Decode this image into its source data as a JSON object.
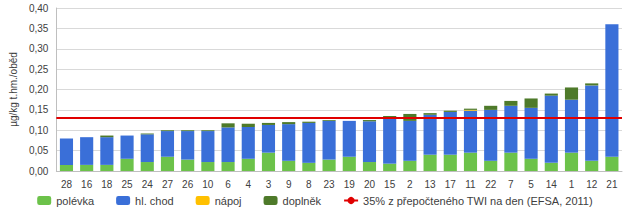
{
  "chart_data": {
    "type": "bar",
    "stacked": true,
    "grid": true,
    "legend": "bottom",
    "y_label": "µg/kg t.hm./oběd",
    "ylim": [
      0,
      0.4
    ],
    "yticks": [
      {
        "value": 0,
        "label": "0,00"
      },
      {
        "value": 0.05,
        "label": "0,05"
      },
      {
        "value": 0.1,
        "label": "0,10"
      },
      {
        "value": 0.15,
        "label": "0,15"
      },
      {
        "value": 0.2,
        "label": "0,20"
      },
      {
        "value": 0.25,
        "label": "0,25"
      },
      {
        "value": 0.3,
        "label": "0,30"
      },
      {
        "value": 0.35,
        "label": "0,35"
      },
      {
        "value": 0.4,
        "label": "0,40"
      }
    ],
    "categories": [
      "28",
      "16",
      "18",
      "25",
      "24",
      "27",
      "26",
      "10",
      "6",
      "4",
      "3",
      "9",
      "8",
      "23",
      "19",
      "20",
      "15",
      "2",
      "13",
      "17",
      "11",
      "22",
      "7",
      "5",
      "14",
      "1",
      "12",
      "21"
    ],
    "series": [
      {
        "name": "polévka",
        "color": "#6cc24a",
        "values": [
          0.015,
          0.015,
          0.015,
          0.03,
          0.022,
          0.035,
          0.028,
          0.022,
          0.022,
          0.03,
          0.045,
          0.025,
          0.02,
          0.028,
          0.035,
          0.022,
          0.018,
          0.025,
          0.04,
          0.04,
          0.045,
          0.025,
          0.045,
          0.03,
          0.02,
          0.045,
          0.025,
          0.035
        ]
      },
      {
        "name": "hl. chod",
        "color": "#3a6fd8",
        "values": [
          0.065,
          0.068,
          0.068,
          0.057,
          0.068,
          0.063,
          0.07,
          0.076,
          0.085,
          0.078,
          0.068,
          0.09,
          0.098,
          0.095,
          0.088,
          0.1,
          0.11,
          0.098,
          0.098,
          0.105,
          0.103,
          0.125,
          0.115,
          0.125,
          0.165,
          0.13,
          0.185,
          0.325
        ]
      },
      {
        "name": "nápoj",
        "color": "#ffc000",
        "values": [
          0,
          0,
          0,
          0,
          0,
          0,
          0,
          0,
          0,
          0,
          0,
          0,
          0,
          0,
          0,
          0,
          0,
          0,
          0,
          0,
          0.002,
          0,
          0,
          0,
          0,
          0,
          0,
          0
        ]
      },
      {
        "name": "doplněk",
        "color": "#4e7a2a",
        "values": [
          0,
          0,
          0.004,
          0,
          0.002,
          0.002,
          0.002,
          0.002,
          0.01,
          0.008,
          0.005,
          0.005,
          0.003,
          0.002,
          0,
          0.003,
          0.007,
          0.017,
          0.004,
          0.003,
          0.003,
          0.01,
          0.012,
          0.023,
          0.005,
          0.03,
          0.005,
          0
        ]
      }
    ],
    "reference_line": {
      "name": "35% z přepočteného TWI na den (EFSA, 2011)",
      "value": 0.125,
      "color": "#e00000"
    }
  }
}
